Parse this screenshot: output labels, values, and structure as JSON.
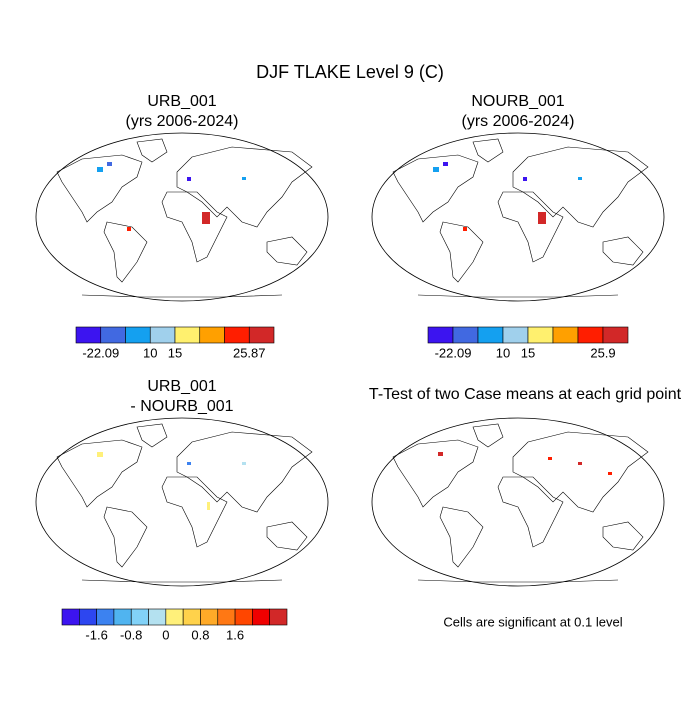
{
  "title": "DJF TLAKE Level 9 (C)",
  "panels": [
    {
      "title": [
        "URB_001",
        "(yrs 2006-2024)"
      ],
      "colorbar": {
        "colors": [
          "#3c14f0",
          "#4169e1",
          "#14a0f0",
          "#a0d0ec",
          "#fff06e",
          "#ffa000",
          "#ff1e00",
          "#d22828"
        ],
        "labels": [
          "-22.09",
          null,
          "10",
          "15",
          null,
          null,
          "25.87"
        ]
      }
    },
    {
      "title": [
        "NOURB_001",
        "(yrs 2006-2024)"
      ],
      "colorbar": {
        "colors": [
          "#3c14f0",
          "#4169e1",
          "#14a0f0",
          "#a0d0ec",
          "#fff06e",
          "#ffa000",
          "#ff1e00",
          "#d22828"
        ],
        "labels": [
          "-22.09",
          null,
          "10",
          "15",
          null,
          null,
          "25.9"
        ]
      }
    },
    {
      "title": [
        "URB_001",
        "- NOURB_001"
      ],
      "colorbar": {
        "colors": [
          "#3c14f0",
          "#2d46f0",
          "#3c82f0",
          "#50b4f0",
          "#82d2f8",
          "#b4e1f0",
          "#fff07a",
          "#ffd24b",
          "#ffaa28",
          "#ff7814",
          "#ff4600",
          "#f00000",
          "#d22828"
        ],
        "labels": [
          null,
          "-1.6",
          null,
          "-0.8",
          null,
          "0",
          null,
          "0.8",
          null,
          "1.6",
          null,
          null
        ]
      }
    },
    {
      "title": [
        "T-Test of two Case means at each grid point"
      ],
      "note": "Cells are significant at 0.1 level"
    }
  ]
}
